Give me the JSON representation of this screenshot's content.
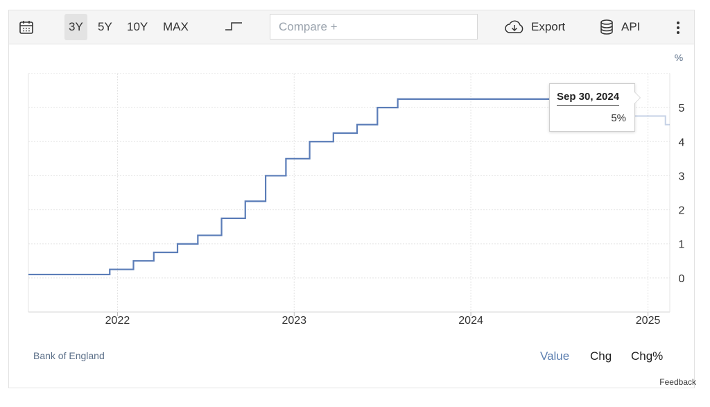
{
  "toolbar": {
    "ranges": [
      {
        "label": "3Y",
        "active": true
      },
      {
        "label": "5Y",
        "active": false
      },
      {
        "label": "10Y",
        "active": false
      },
      {
        "label": "MAX",
        "active": false
      }
    ],
    "compare_placeholder": "Compare +",
    "export_label": "Export",
    "api_label": "API",
    "icons": {
      "calendar": "calendar-icon",
      "step": "step-chart-icon",
      "export": "cloud-download-icon",
      "api": "database-icon",
      "more": "more-vertical-icon"
    }
  },
  "chart_data": {
    "type": "line",
    "step": true,
    "unit_label": "%",
    "x_ticks": [
      "2022",
      "2023",
      "2024",
      "2025"
    ],
    "y_ticks": [
      0,
      1,
      2,
      3,
      4,
      5
    ],
    "xlim": [
      "2021-07-01",
      "2025-02-15"
    ],
    "ylim": [
      -1,
      6
    ],
    "grid": true,
    "y_axis_side": "right",
    "series": [
      {
        "color": "#5b7db8",
        "points": [
          {
            "x": "2021-07-01",
            "y": 0.1
          },
          {
            "x": "2021-12-16",
            "y": 0.25
          },
          {
            "x": "2022-02-03",
            "y": 0.5
          },
          {
            "x": "2022-03-17",
            "y": 0.75
          },
          {
            "x": "2022-05-05",
            "y": 1.0
          },
          {
            "x": "2022-06-16",
            "y": 1.25
          },
          {
            "x": "2022-08-04",
            "y": 1.75
          },
          {
            "x": "2022-09-22",
            "y": 2.25
          },
          {
            "x": "2022-11-03",
            "y": 3.0
          },
          {
            "x": "2022-12-15",
            "y": 3.5
          },
          {
            "x": "2023-02-02",
            "y": 4.0
          },
          {
            "x": "2023-03-23",
            "y": 4.25
          },
          {
            "x": "2023-05-11",
            "y": 4.5
          },
          {
            "x": "2023-06-22",
            "y": 5.0
          },
          {
            "x": "2023-08-03",
            "y": 5.25
          },
          {
            "x": "2024-08-01",
            "y": 5.0
          },
          {
            "x": "2024-11-07",
            "y": 4.75
          },
          {
            "x": "2025-02-06",
            "y": 4.5
          },
          {
            "x": "2025-02-15",
            "y": 4.5
          }
        ]
      }
    ],
    "tooltip": {
      "date": "Sep 30, 2024",
      "value": "5%",
      "x": "2024-09-30",
      "y": 5.0
    }
  },
  "footer": {
    "source": "Bank of England",
    "tabs": [
      {
        "label": "Value",
        "active": true
      },
      {
        "label": "Chg",
        "active": false
      },
      {
        "label": "Chg%",
        "active": false
      }
    ],
    "feedback": "Feedback"
  }
}
